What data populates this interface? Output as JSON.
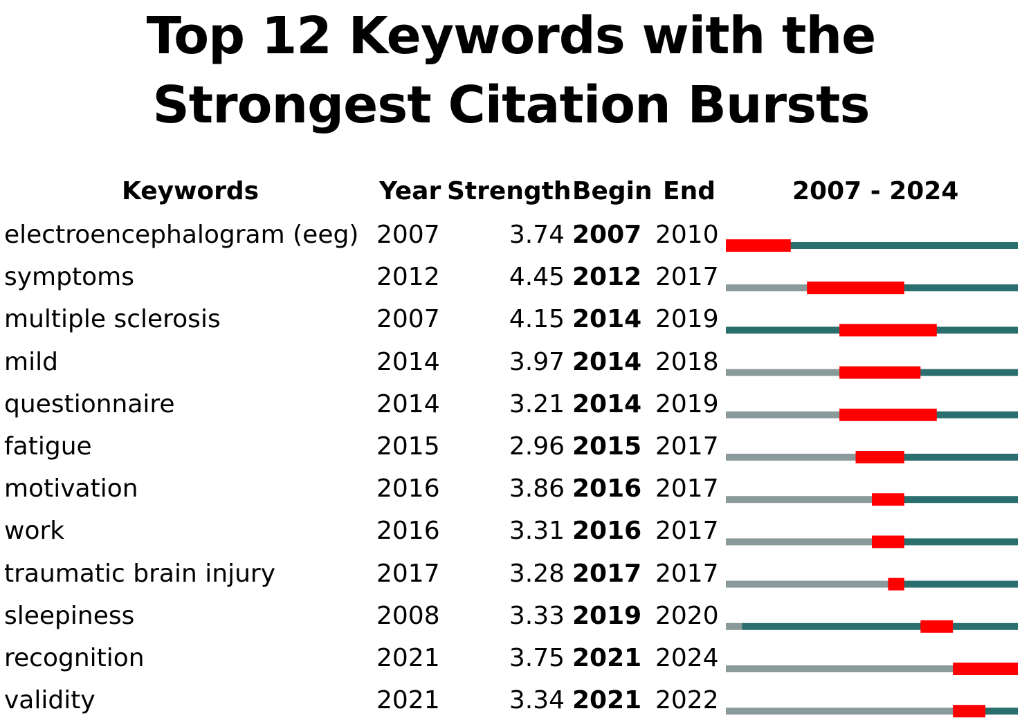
{
  "chart_data": {
    "type": "table",
    "title": "Top 12 Keywords with the Strongest Citation Bursts",
    "columns": [
      "Keywords",
      "Year",
      "Strength",
      "Begin",
      "End",
      "2007 - 2024"
    ],
    "range": [
      2007,
      2024
    ],
    "colors": {
      "burst": "#ff0000",
      "active": "#2b6e6e",
      "inactive": "#8a9a9a"
    },
    "rows": [
      {
        "keyword": "electroencephalogram (eeg)",
        "year": "2007",
        "strength": "3.74",
        "begin": "2007",
        "end": "2010"
      },
      {
        "keyword": "symptoms",
        "year": "2012",
        "strength": "4.45",
        "begin": "2012",
        "end": "2017"
      },
      {
        "keyword": "multiple sclerosis",
        "year": "2007",
        "strength": "4.15",
        "begin": "2014",
        "end": "2019"
      },
      {
        "keyword": "mild",
        "year": "2014",
        "strength": "3.97",
        "begin": "2014",
        "end": "2018"
      },
      {
        "keyword": "questionnaire",
        "year": "2014",
        "strength": "3.21",
        "begin": "2014",
        "end": "2019"
      },
      {
        "keyword": "fatigue",
        "year": "2015",
        "strength": "2.96",
        "begin": "2015",
        "end": "2017"
      },
      {
        "keyword": "motivation",
        "year": "2016",
        "strength": "3.86",
        "begin": "2016",
        "end": "2017"
      },
      {
        "keyword": "work",
        "year": "2016",
        "strength": "3.31",
        "begin": "2016",
        "end": "2017"
      },
      {
        "keyword": "traumatic brain injury",
        "year": "2017",
        "strength": "3.28",
        "begin": "2017",
        "end": "2017"
      },
      {
        "keyword": "sleepiness",
        "year": "2008",
        "strength": "3.33",
        "begin": "2019",
        "end": "2020"
      },
      {
        "keyword": "recognition",
        "year": "2021",
        "strength": "3.75",
        "begin": "2021",
        "end": "2024"
      },
      {
        "keyword": "validity",
        "year": "2021",
        "strength": "3.34",
        "begin": "2021",
        "end": "2022"
      }
    ]
  }
}
